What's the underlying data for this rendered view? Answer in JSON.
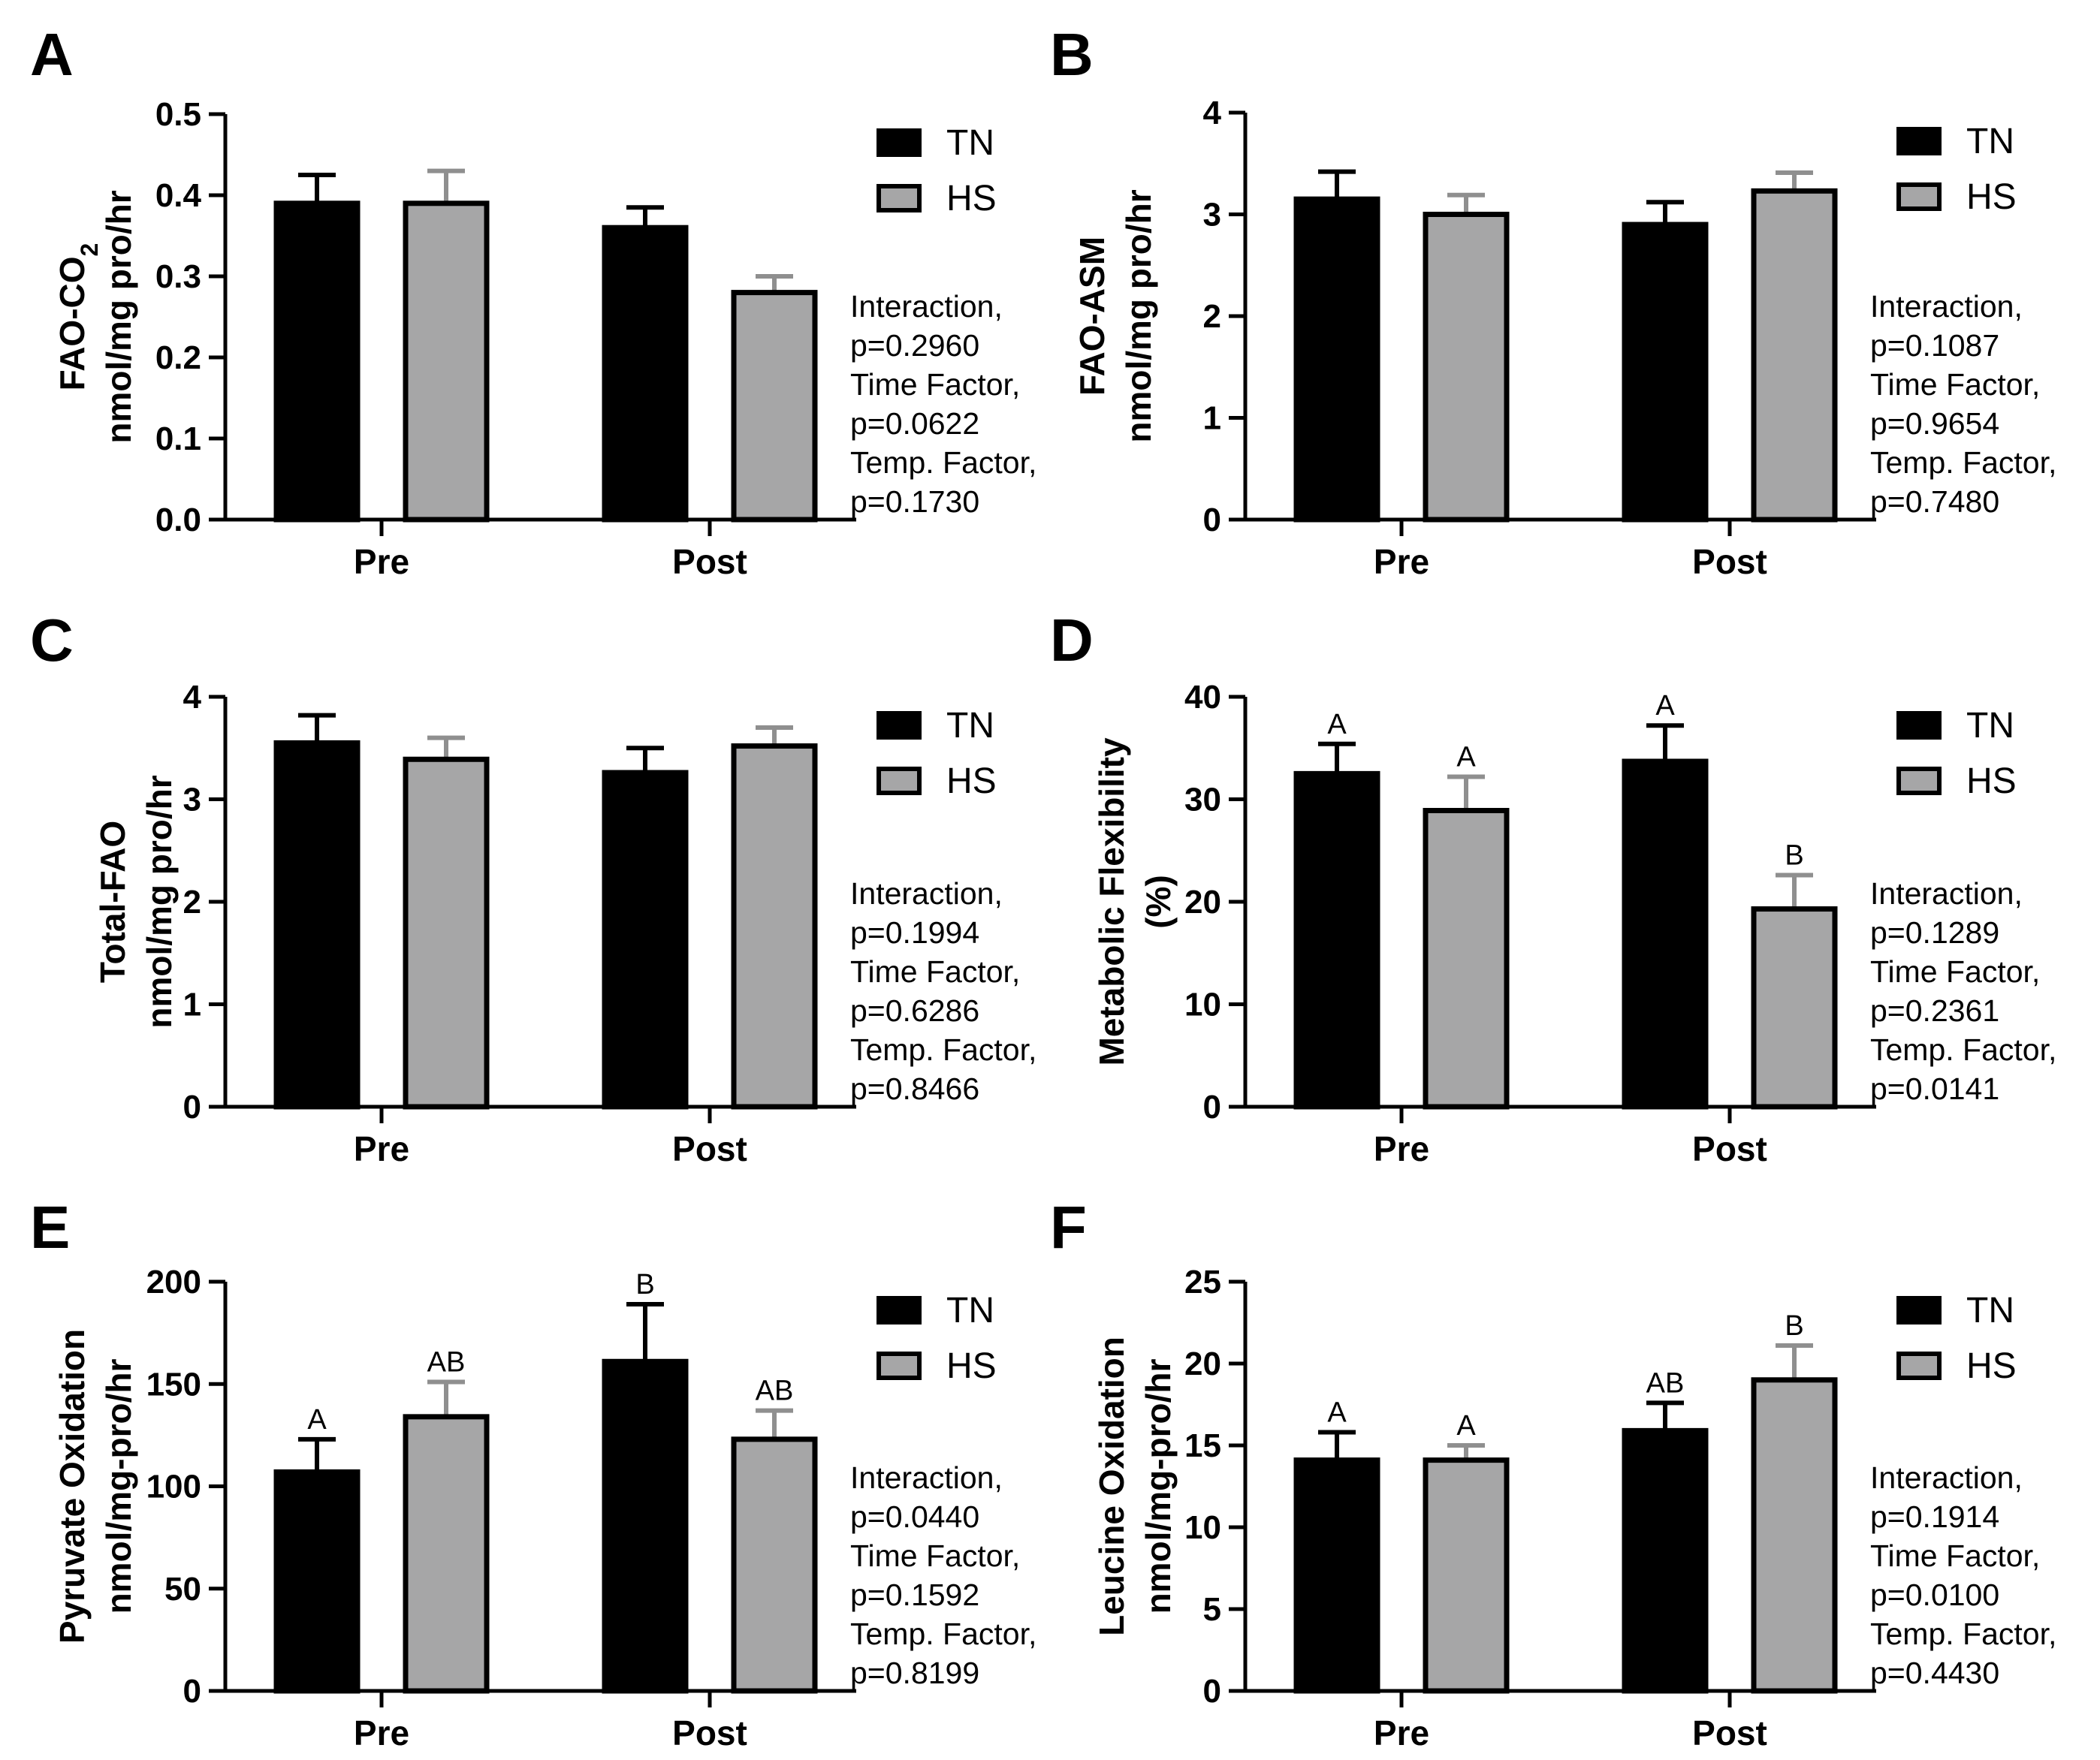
{
  "colors": {
    "TN": "#000000",
    "HS": "#a6a6a7",
    "axis": "#000000",
    "hs_error": "#8f8f8f"
  },
  "chart_data": [
    {
      "type": "bar",
      "panel": "A",
      "ylabel_line1": "FAO-CO",
      "ylabel_sub": "2",
      "ylabel_line2": "nmol/mg pro/hr",
      "categories": [
        "Pre",
        "Post"
      ],
      "ylim": [
        0,
        0.5
      ],
      "yticks": [
        0,
        0.1,
        0.2,
        0.3,
        0.4,
        0.5
      ],
      "ytick_labels": [
        "0.0",
        "0.1",
        "0.2",
        "0.3",
        "0.4",
        "0.5"
      ],
      "legend": [
        "TN",
        "HS"
      ],
      "series": [
        {
          "name": "TN",
          "values": [
            0.39,
            0.36
          ],
          "errors": [
            0.035,
            0.025
          ],
          "labels": [
            "",
            ""
          ]
        },
        {
          "name": "HS",
          "values": [
            0.39,
            0.28
          ],
          "errors": [
            0.04,
            0.02
          ],
          "labels": [
            "",
            ""
          ]
        }
      ],
      "stats": [
        "Interaction,",
        "p=0.2960",
        "Time Factor,",
        "p=0.0622",
        "Temp. Factor,",
        "p=0.1730"
      ]
    },
    {
      "type": "bar",
      "panel": "B",
      "ylabel_line1": "FAO-ASM",
      "ylabel_sub": "",
      "ylabel_line2": "nmol/mg pro/hr",
      "categories": [
        "Pre",
        "Post"
      ],
      "ylim": [
        0,
        4
      ],
      "yticks": [
        0,
        1,
        2,
        3,
        4
      ],
      "ytick_labels": [
        "0",
        "1",
        "2",
        "3",
        "4"
      ],
      "legend": [
        "TN",
        "HS"
      ],
      "series": [
        {
          "name": "TN",
          "values": [
            3.15,
            2.9
          ],
          "errors": [
            0.27,
            0.22
          ],
          "labels": [
            "",
            ""
          ]
        },
        {
          "name": "HS",
          "values": [
            3.0,
            3.23
          ],
          "errors": [
            0.19,
            0.18
          ],
          "labels": [
            "",
            ""
          ]
        }
      ],
      "stats": [
        "Interaction,",
        "p=0.1087",
        "Time Factor,",
        "p=0.9654",
        "Temp. Factor,",
        "p=0.7480"
      ]
    },
    {
      "type": "bar",
      "panel": "C",
      "ylabel_line1": "Total-FAO",
      "ylabel_sub": "",
      "ylabel_line2": "nmol/mg pro/hr",
      "categories": [
        "Pre",
        "Post"
      ],
      "ylim": [
        0,
        4
      ],
      "yticks": [
        0,
        1,
        2,
        3,
        4
      ],
      "ytick_labels": [
        "0",
        "1",
        "2",
        "3",
        "4"
      ],
      "legend": [
        "TN",
        "HS"
      ],
      "series": [
        {
          "name": "TN",
          "values": [
            3.55,
            3.26
          ],
          "errors": [
            0.27,
            0.24
          ],
          "labels": [
            "",
            ""
          ]
        },
        {
          "name": "HS",
          "values": [
            3.39,
            3.52
          ],
          "errors": [
            0.21,
            0.18
          ],
          "labels": [
            "",
            ""
          ]
        }
      ],
      "stats": [
        "Interaction,",
        "p=0.1994",
        "Time Factor,",
        "p=0.6286",
        "Temp. Factor,",
        "p=0.8466"
      ]
    },
    {
      "type": "bar",
      "panel": "D",
      "ylabel_line1": "Metabolic Flexibility",
      "ylabel_sub": "",
      "ylabel_line2": "(%)",
      "categories": [
        "Pre",
        "Post"
      ],
      "ylim": [
        0,
        40
      ],
      "yticks": [
        0,
        10,
        20,
        30,
        40
      ],
      "ytick_labels": [
        "0",
        "10",
        "20",
        "30",
        "40"
      ],
      "legend": [
        "TN",
        "HS"
      ],
      "series": [
        {
          "name": "TN",
          "values": [
            32.5,
            33.7
          ],
          "errors": [
            2.9,
            3.5
          ],
          "labels": [
            "A",
            "A"
          ]
        },
        {
          "name": "HS",
          "values": [
            28.9,
            19.3
          ],
          "errors": [
            3.3,
            3.3
          ],
          "labels": [
            "A",
            "B"
          ]
        }
      ],
      "stats": [
        "Interaction,",
        "p=0.1289",
        "Time Factor,",
        "p=0.2361",
        "Temp. Factor,",
        "p=0.0141"
      ]
    },
    {
      "type": "bar",
      "panel": "E",
      "ylabel_line1": "Pyruvate Oxidation",
      "ylabel_sub": "",
      "ylabel_line2": "nmol/mg-pro/hr",
      "categories": [
        "Pre",
        "Post"
      ],
      "ylim": [
        0,
        200
      ],
      "yticks": [
        0,
        50,
        100,
        150,
        200
      ],
      "ytick_labels": [
        "0",
        "50",
        "100",
        "150",
        "200"
      ],
      "legend": [
        "TN",
        "HS"
      ],
      "series": [
        {
          "name": "TN",
          "values": [
            107,
            161
          ],
          "errors": [
            16,
            28
          ],
          "labels": [
            "A",
            "B"
          ]
        },
        {
          "name": "HS",
          "values": [
            134,
            123
          ],
          "errors": [
            17,
            14
          ],
          "labels": [
            "AB",
            "AB"
          ]
        }
      ],
      "stats": [
        "Interaction,",
        "p=0.0440",
        "Time Factor,",
        "p=0.1592",
        "Temp. Factor,",
        "p=0.8199"
      ]
    },
    {
      "type": "bar",
      "panel": "F",
      "ylabel_line1": "Leucine Oxidation",
      "ylabel_sub": "",
      "ylabel_line2": "nmol/mg-pro/hr",
      "categories": [
        "Pre",
        "Post"
      ],
      "ylim": [
        0,
        25
      ],
      "yticks": [
        0,
        5,
        10,
        15,
        20,
        25
      ],
      "ytick_labels": [
        "0",
        "5",
        "10",
        "15",
        "20",
        "25"
      ],
      "legend": [
        "TN",
        "HS"
      ],
      "series": [
        {
          "name": "TN",
          "values": [
            14.1,
            15.9
          ],
          "errors": [
            1.7,
            1.7
          ],
          "labels": [
            "A",
            "AB"
          ]
        },
        {
          "name": "HS",
          "values": [
            14.1,
            19.0
          ],
          "errors": [
            0.9,
            2.1
          ],
          "labels": [
            "A",
            "B"
          ]
        }
      ],
      "stats": [
        "Interaction,",
        "p=0.1914",
        "Time Factor,",
        "p=0.0100",
        "Temp. Factor,",
        "p=0.4430"
      ]
    }
  ]
}
